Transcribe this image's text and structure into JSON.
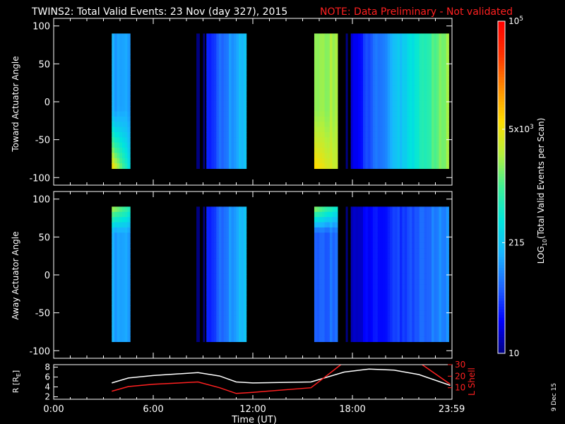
{
  "header": {
    "title": "TWINS2: Total Valid Events: 23 Nov (day 327), 2015",
    "note": "NOTE: Data Preliminary - Not validated",
    "title_color": "#ffffff",
    "note_color": "#ff2020"
  },
  "footer": {
    "date_stamp": "9 Dec 15"
  },
  "colorbar": {
    "label_prefix": "LOG",
    "label_sub": "10",
    "label_suffix": "(Total Valid Events per Scan)",
    "scale": "log",
    "min": 10,
    "max": 100000,
    "ticks": [
      {
        "label": "10",
        "value": 10
      },
      {
        "label": "215",
        "value": 215
      },
      {
        "label": "5x10",
        "sup": "3",
        "value": 5000
      },
      {
        "label": "10",
        "sup": "5",
        "value": 100000
      }
    ],
    "colors": [
      "#000080",
      "#0000ff",
      "#1e64ff",
      "#19b4ff",
      "#00e6dc",
      "#3cf096",
      "#b4f03c",
      "#ffdc00",
      "#ff8c00",
      "#ff3200",
      "#ff0000"
    ]
  },
  "chart_data": [
    {
      "type": "heatmap",
      "name": "toward",
      "ylabel": "Toward Actuator Angle",
      "ylim": [
        -110,
        110
      ],
      "xlim": [
        0,
        24
      ],
      "y_ticks": [
        100,
        50,
        0,
        -50,
        -100
      ],
      "data_y_range": [
        -88,
        90
      ],
      "segments": [
        {
          "x": [
            3.5,
            4.6
          ],
          "base": 2.1,
          "bottom_hot": 3.7
        },
        {
          "x": [
            8.6,
            8.78
          ],
          "base": 0.7
        },
        {
          "x": [
            9.0,
            9.1
          ],
          "base": 0.9
        },
        {
          "x": [
            9.2,
            11.6
          ],
          "base": 1.5,
          "trend": 0.8
        },
        {
          "x": [
            15.7,
            17.1
          ],
          "base": 3.3,
          "bottom_hot": 3.8
        },
        {
          "x": [
            17.6,
            17.7
          ],
          "base": 0.8
        },
        {
          "x": [
            17.9,
            23.8
          ],
          "base": 1.3,
          "trend": 2.0
        }
      ]
    },
    {
      "type": "heatmap",
      "name": "away",
      "ylabel": "Away Actuator Angle",
      "ylim": [
        -110,
        110
      ],
      "xlim": [
        0,
        24
      ],
      "y_ticks": [
        100,
        50,
        0,
        -50,
        -100
      ],
      "data_y_range": [
        -88,
        90
      ],
      "segments": [
        {
          "x": [
            3.5,
            4.6
          ],
          "base": 2.1,
          "top_hot": 3.3
        },
        {
          "x": [
            8.6,
            8.78
          ],
          "base": 0.7
        },
        {
          "x": [
            9.0,
            9.1
          ],
          "base": 0.9
        },
        {
          "x": [
            9.2,
            11.6
          ],
          "base": 1.5,
          "trend": 0.8
        },
        {
          "x": [
            15.7,
            17.1
          ],
          "base": 1.8,
          "top_hot": 3.2
        },
        {
          "x": [
            17.6,
            17.7
          ],
          "base": 0.8
        },
        {
          "x": [
            17.9,
            23.8
          ],
          "base": 1.2,
          "trend": 0.8
        }
      ]
    },
    {
      "type": "line",
      "name": "orbit",
      "ylabel": "R [R",
      "ylabel_sub": "E",
      "ylabel_suffix": "]",
      "y2label": "L Shell",
      "xlabel": "Time (UT)",
      "x_ticks": [
        {
          "label": "0:00",
          "value": 0
        },
        {
          "label": "6:00",
          "value": 6
        },
        {
          "label": "12:00",
          "value": 12
        },
        {
          "label": "18:00",
          "value": 18
        },
        {
          "label": "23:59",
          "value": 23.983
        }
      ],
      "xlim": [
        0,
        24
      ],
      "ylim": [
        1.5,
        8.5
      ],
      "y_ticks": [
        2,
        4,
        6,
        8
      ],
      "y2lim": [
        0,
        30
      ],
      "y2_ticks": [
        10,
        20,
        30
      ],
      "series": [
        {
          "color": "#ffffff",
          "x": [
            3.5,
            4.5,
            6.0,
            8.7,
            10.0,
            11.0,
            12.0,
            15.5,
            16.5,
            17.5,
            19.0,
            20.5,
            22.0,
            23.9
          ],
          "y": [
            4.8,
            5.8,
            6.3,
            6.9,
            6.2,
            5.0,
            4.8,
            5.0,
            6.0,
            7.0,
            7.6,
            7.4,
            6.5,
            4.3
          ]
        },
        {
          "color": "#ff2020",
          "axis": "right",
          "x": [
            3.5,
            4.5,
            6.0,
            8.7,
            10.0,
            11.0,
            12.0,
            15.5,
            16.5,
            17.3
          ],
          "y": [
            7,
            11,
            13,
            15,
            10,
            5,
            6,
            10,
            21,
            30
          ]
        },
        {
          "color": "#ff2020",
          "axis": "right",
          "x": [
            22.2,
            23.9
          ],
          "y": [
            30,
            13
          ]
        }
      ]
    }
  ]
}
